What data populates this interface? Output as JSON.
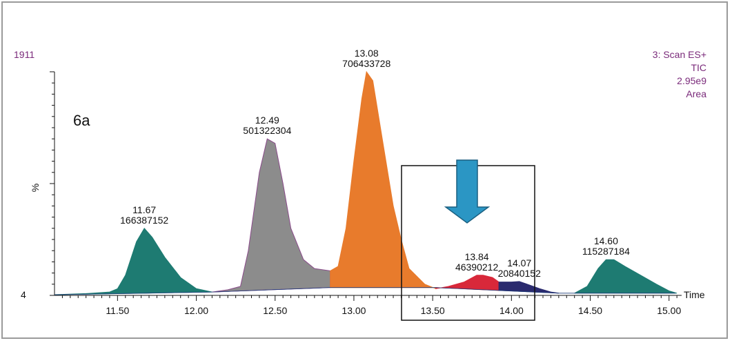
{
  "chart_data": {
    "type": "area",
    "panel_label": "6a",
    "ylabel": "%",
    "xlabel": "Time",
    "y_top_label": "1911",
    "y_bottom_label": "4",
    "xlim": [
      11.1,
      15.08
    ],
    "ylim": [
      0,
      100
    ],
    "x_ticks": [
      "11.50",
      "12.00",
      "12.50",
      "13.00",
      "13.50",
      "14.00",
      "14.50",
      "15.00"
    ],
    "x_tick_values": [
      11.5,
      12.0,
      12.5,
      13.0,
      13.5,
      14.0,
      14.5,
      15.0
    ],
    "info_lines": [
      "3: Scan ES+",
      "TIC",
      "2.95e9",
      "Area"
    ],
    "colors": {
      "teal": "#1e7b72",
      "gray": "#8c8c8c",
      "orange": "#e87b2c",
      "red": "#d8283a",
      "navy": "#2a2a6e",
      "arrow": "#2b96c4",
      "outline_gray": "#8a4a8a",
      "trace": "#1a3a78"
    },
    "peaks": [
      {
        "name": "peak-11-67",
        "rt": "11.67",
        "area": "166387152",
        "color": "#1e7b72",
        "points": [
          [
            11.1,
            0.3
          ],
          [
            11.3,
            0.8
          ],
          [
            11.45,
            1.5
          ],
          [
            11.5,
            3
          ],
          [
            11.55,
            9
          ],
          [
            11.62,
            24
          ],
          [
            11.67,
            30
          ],
          [
            11.72,
            26
          ],
          [
            11.8,
            17
          ],
          [
            11.9,
            8
          ],
          [
            12.0,
            3
          ],
          [
            12.1,
            1.5
          ]
        ]
      },
      {
        "name": "peak-12-49",
        "rt": "12.49",
        "area": "501322304",
        "color": "#8c8c8c",
        "points": [
          [
            12.1,
            1.5
          ],
          [
            12.2,
            2.5
          ],
          [
            12.28,
            4
          ],
          [
            12.33,
            20
          ],
          [
            12.4,
            55
          ],
          [
            12.45,
            70
          ],
          [
            12.5,
            68
          ],
          [
            12.55,
            50
          ],
          [
            12.6,
            30
          ],
          [
            12.68,
            16
          ],
          [
            12.75,
            12
          ],
          [
            12.85,
            11
          ]
        ]
      },
      {
        "name": "peak-13-08",
        "rt": "13.08",
        "area": "706433728",
        "color": "#e87b2c",
        "points": [
          [
            12.85,
            11
          ],
          [
            12.9,
            13
          ],
          [
            12.95,
            30
          ],
          [
            13.0,
            60
          ],
          [
            13.05,
            88
          ],
          [
            13.08,
            100
          ],
          [
            13.12,
            96
          ],
          [
            13.18,
            70
          ],
          [
            13.25,
            40
          ],
          [
            13.3,
            25
          ],
          [
            13.35,
            12
          ],
          [
            13.45,
            5
          ],
          [
            13.52,
            3
          ]
        ]
      },
      {
        "name": "peak-13-84",
        "rt": "13.84",
        "area": "46390212",
        "color": "#d8283a",
        "points": [
          [
            13.52,
            3
          ],
          [
            13.6,
            4
          ],
          [
            13.7,
            6
          ],
          [
            13.78,
            9
          ],
          [
            13.82,
            9
          ],
          [
            13.88,
            8
          ],
          [
            13.92,
            6
          ]
        ]
      },
      {
        "name": "peak-14-07",
        "rt": "14.07",
        "area": "20840152",
        "color": "#2a2a6e",
        "points": [
          [
            13.92,
            6
          ],
          [
            14.0,
            6
          ],
          [
            14.05,
            6.2
          ],
          [
            14.1,
            5
          ],
          [
            14.18,
            3
          ],
          [
            14.25,
            1.5
          ],
          [
            14.3,
            1
          ]
        ]
      },
      {
        "name": "peak-14-60",
        "rt": "14.60",
        "area": "115287184",
        "color": "#1e7b72",
        "points": [
          [
            14.4,
            1
          ],
          [
            14.48,
            4
          ],
          [
            14.55,
            12
          ],
          [
            14.6,
            16
          ],
          [
            14.65,
            16
          ],
          [
            14.72,
            13
          ],
          [
            14.82,
            9
          ],
          [
            14.92,
            5
          ],
          [
            15.0,
            2
          ],
          [
            15.05,
            1
          ]
        ]
      }
    ],
    "baseline": [
      [
        11.1,
        0.3
      ],
      [
        12.1,
        1.5
      ],
      [
        12.85,
        3.5
      ],
      [
        13.52,
        3.5
      ],
      [
        14.3,
        1
      ],
      [
        14.4,
        1
      ],
      [
        15.05,
        1
      ]
    ]
  }
}
